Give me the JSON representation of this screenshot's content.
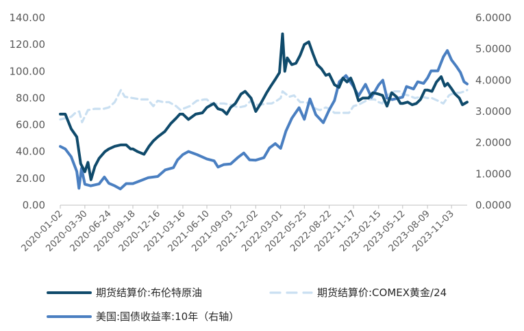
{
  "chart_data": {
    "type": "line",
    "y_left": {
      "ticks": [
        "0.00",
        "20.00",
        "40.00",
        "60.00",
        "80.00",
        "100.00",
        "120.00",
        "140.00"
      ],
      "ylim": [
        0,
        140
      ]
    },
    "y_right": {
      "ticks": [
        "0.0000",
        "1.0000",
        "2.0000",
        "3.0000",
        "4.0000",
        "5.0000",
        "6.0000"
      ],
      "ylim": [
        0,
        6
      ]
    },
    "x_ticks": [
      "2020-01-02",
      "2020-03-30",
      "2020-06-24",
      "2020-09-18",
      "2020-12-16",
      "2021-03-16",
      "2021-06-10",
      "2021-09-03",
      "2021-12-02",
      "2022-03-01",
      "2022-05-25",
      "2022-08-22",
      "2022-11-17",
      "2023-02-15",
      "2023-05-12",
      "2023-08-09",
      "2023-11-03"
    ],
    "grid": false,
    "legend_position": "bottom",
    "series": [
      {
        "name": "期货结算价:布伦特原油",
        "axis": "left",
        "color": "#0f4a6b",
        "style": "solid",
        "x": [
          "2020-01-02",
          "2020-01-20",
          "2020-02-10",
          "2020-03-01",
          "2020-03-15",
          "2020-03-30",
          "2020-04-10",
          "2020-04-21",
          "2020-05-05",
          "2020-05-20",
          "2020-06-10",
          "2020-06-24",
          "2020-07-15",
          "2020-08-05",
          "2020-08-25",
          "2020-09-10",
          "2020-09-18",
          "2020-10-05",
          "2020-10-28",
          "2020-11-15",
          "2020-11-30",
          "2020-12-16",
          "2021-01-10",
          "2021-02-01",
          "2021-02-20",
          "2021-03-05",
          "2021-03-16",
          "2021-04-05",
          "2021-05-01",
          "2021-05-25",
          "2021-06-10",
          "2021-07-05",
          "2021-07-20",
          "2021-08-05",
          "2021-08-20",
          "2021-09-03",
          "2021-09-20",
          "2021-10-10",
          "2021-10-25",
          "2021-11-15",
          "2021-12-02",
          "2021-12-20",
          "2022-01-10",
          "2022-01-25",
          "2022-02-10",
          "2022-02-25",
          "2022-03-08",
          "2022-03-16",
          "2022-03-25",
          "2022-04-10",
          "2022-04-25",
          "2022-05-10",
          "2022-05-25",
          "2022-06-10",
          "2022-06-25",
          "2022-07-10",
          "2022-07-25",
          "2022-08-10",
          "2022-08-22",
          "2022-09-10",
          "2022-09-26",
          "2022-10-10",
          "2022-10-25",
          "2022-11-07",
          "2022-11-17",
          "2022-12-05",
          "2022-12-20",
          "2023-01-10",
          "2023-01-25",
          "2023-02-15",
          "2023-03-01",
          "2023-03-17",
          "2023-04-03",
          "2023-04-20",
          "2023-05-04",
          "2023-05-12",
          "2023-05-30",
          "2023-06-15",
          "2023-06-30",
          "2023-07-15",
          "2023-07-31",
          "2023-08-09",
          "2023-08-25",
          "2023-09-10",
          "2023-09-27",
          "2023-10-10",
          "2023-10-20",
          "2023-11-03",
          "2023-11-16",
          "2023-12-01",
          "2023-12-12",
          "2023-12-29"
        ],
        "values": [
          68,
          68,
          57,
          51,
          31,
          25,
          32,
          19,
          29,
          35,
          40,
          42,
          44,
          45,
          45,
          42,
          42,
          40,
          38,
          44,
          48,
          51,
          55,
          61,
          65,
          68,
          68,
          64,
          68,
          69,
          73,
          76,
          72,
          71,
          68,
          73,
          76,
          83,
          85,
          80,
          70,
          76,
          84,
          89,
          94,
          99,
          128,
          100,
          110,
          105,
          106,
          112,
          120,
          122,
          113,
          105,
          102,
          97,
          98,
          90,
          88,
          95,
          92,
          95,
          90,
          78,
          80,
          80,
          84,
          83,
          82,
          74,
          84,
          81,
          76,
          76,
          77,
          75,
          76,
          79,
          86,
          86,
          85,
          92,
          96,
          89,
          91,
          87,
          83,
          80,
          75,
          77
        ]
      },
      {
        "name": "期货结算价:COMEX黄金/24",
        "axis": "left",
        "color": "#c9dff1",
        "style": "dashed",
        "x": [
          "2020-01-02",
          "2020-01-20",
          "2020-02-10",
          "2020-02-25",
          "2020-03-10",
          "2020-03-20",
          "2020-04-10",
          "2020-05-05",
          "2020-06-05",
          "2020-06-24",
          "2020-07-15",
          "2020-08-06",
          "2020-08-20",
          "2020-09-18",
          "2020-10-15",
          "2020-11-10",
          "2020-11-30",
          "2020-12-16",
          "2021-01-05",
          "2021-01-25",
          "2021-02-20",
          "2021-03-08",
          "2021-03-16",
          "2021-04-10",
          "2021-05-05",
          "2021-06-01",
          "2021-06-10",
          "2021-07-01",
          "2021-07-20",
          "2021-08-10",
          "2021-09-03",
          "2021-10-01",
          "2021-10-25",
          "2021-11-15",
          "2021-12-02",
          "2021-12-20",
          "2022-01-10",
          "2022-01-28",
          "2022-02-15",
          "2022-03-01",
          "2022-03-08",
          "2022-04-01",
          "2022-04-18",
          "2022-05-10",
          "2022-05-25",
          "2022-06-15",
          "2022-07-05",
          "2022-07-20",
          "2022-08-10",
          "2022-08-22",
          "2022-09-10",
          "2022-09-26",
          "2022-10-15",
          "2022-11-01",
          "2022-11-17",
          "2022-12-05",
          "2023-01-10",
          "2023-02-01",
          "2023-02-15",
          "2023-02-28",
          "2023-03-17",
          "2023-04-12",
          "2023-05-04",
          "2023-05-12",
          "2023-06-01",
          "2023-06-25",
          "2023-07-20",
          "2023-08-09",
          "2023-08-25",
          "2023-09-15",
          "2023-10-05",
          "2023-10-25",
          "2023-11-03",
          "2023-11-25",
          "2023-12-04",
          "2023-12-20",
          "2023-12-29"
        ],
        "values": [
          64,
          65,
          66,
          69,
          70,
          62,
          71,
          72,
          72,
          73,
          77,
          86,
          81,
          80,
          79,
          79,
          74,
          78,
          77,
          77,
          74,
          71,
          72,
          74,
          78,
          79,
          79,
          75,
          76,
          76,
          75,
          73,
          74,
          78,
          75,
          75,
          76,
          76,
          78,
          80,
          85,
          81,
          82,
          77,
          77,
          76,
          72,
          71,
          73,
          72,
          69,
          69,
          69,
          69,
          74,
          75,
          79,
          79,
          77,
          76,
          82,
          85,
          85,
          83,
          82,
          80,
          81,
          80,
          80,
          78,
          76,
          82,
          83,
          84,
          84,
          85,
          86
        ]
      },
      {
        "name": "美国:国债收益率:10年（右轴）",
        "axis": "right",
        "color": "#4a7fc1",
        "style": "solid",
        "x": [
          "2020-01-02",
          "2020-01-20",
          "2020-02-10",
          "2020-03-01",
          "2020-03-09",
          "2020-03-18",
          "2020-03-30",
          "2020-04-20",
          "2020-05-20",
          "2020-06-08",
          "2020-06-24",
          "2020-07-15",
          "2020-08-04",
          "2020-08-25",
          "2020-09-18",
          "2020-10-20",
          "2020-11-12",
          "2020-12-16",
          "2021-01-12",
          "2021-02-10",
          "2021-02-25",
          "2021-03-16",
          "2021-04-05",
          "2021-05-05",
          "2021-06-10",
          "2021-07-06",
          "2021-07-20",
          "2021-08-10",
          "2021-09-03",
          "2021-09-28",
          "2021-10-20",
          "2021-11-10",
          "2021-12-02",
          "2021-12-31",
          "2022-01-20",
          "2022-02-10",
          "2022-03-01",
          "2022-03-20",
          "2022-04-10",
          "2022-05-06",
          "2022-05-25",
          "2022-06-14",
          "2022-07-05",
          "2022-08-01",
          "2022-08-22",
          "2022-09-10",
          "2022-09-27",
          "2022-10-21",
          "2022-11-17",
          "2022-12-05",
          "2022-12-30",
          "2023-01-20",
          "2023-02-15",
          "2023-03-02",
          "2023-03-17",
          "2023-04-05",
          "2023-05-12",
          "2023-05-26",
          "2023-06-20",
          "2023-07-05",
          "2023-07-26",
          "2023-08-09",
          "2023-08-22",
          "2023-09-15",
          "2023-10-05",
          "2023-10-19",
          "2023-11-03",
          "2023-11-20",
          "2023-12-05",
          "2023-12-18",
          "2023-12-29"
        ],
        "values": [
          1.88,
          1.8,
          1.55,
          1.08,
          0.54,
          1.18,
          0.67,
          0.62,
          0.68,
          0.9,
          0.7,
          0.62,
          0.52,
          0.69,
          0.69,
          0.8,
          0.88,
          0.92,
          1.13,
          1.2,
          1.45,
          1.62,
          1.72,
          1.62,
          1.48,
          1.42,
          1.22,
          1.3,
          1.32,
          1.52,
          1.67,
          1.45,
          1.44,
          1.52,
          1.83,
          1.97,
          1.82,
          2.37,
          2.78,
          3.12,
          2.75,
          3.4,
          2.9,
          2.64,
          3.05,
          3.35,
          3.95,
          4.15,
          3.8,
          3.5,
          3.87,
          3.45,
          3.85,
          4.0,
          3.43,
          3.38,
          3.46,
          3.8,
          3.72,
          3.95,
          3.9,
          4.07,
          4.3,
          4.3,
          4.75,
          4.95,
          4.65,
          4.45,
          4.25,
          3.95,
          3.88
        ]
      }
    ]
  }
}
